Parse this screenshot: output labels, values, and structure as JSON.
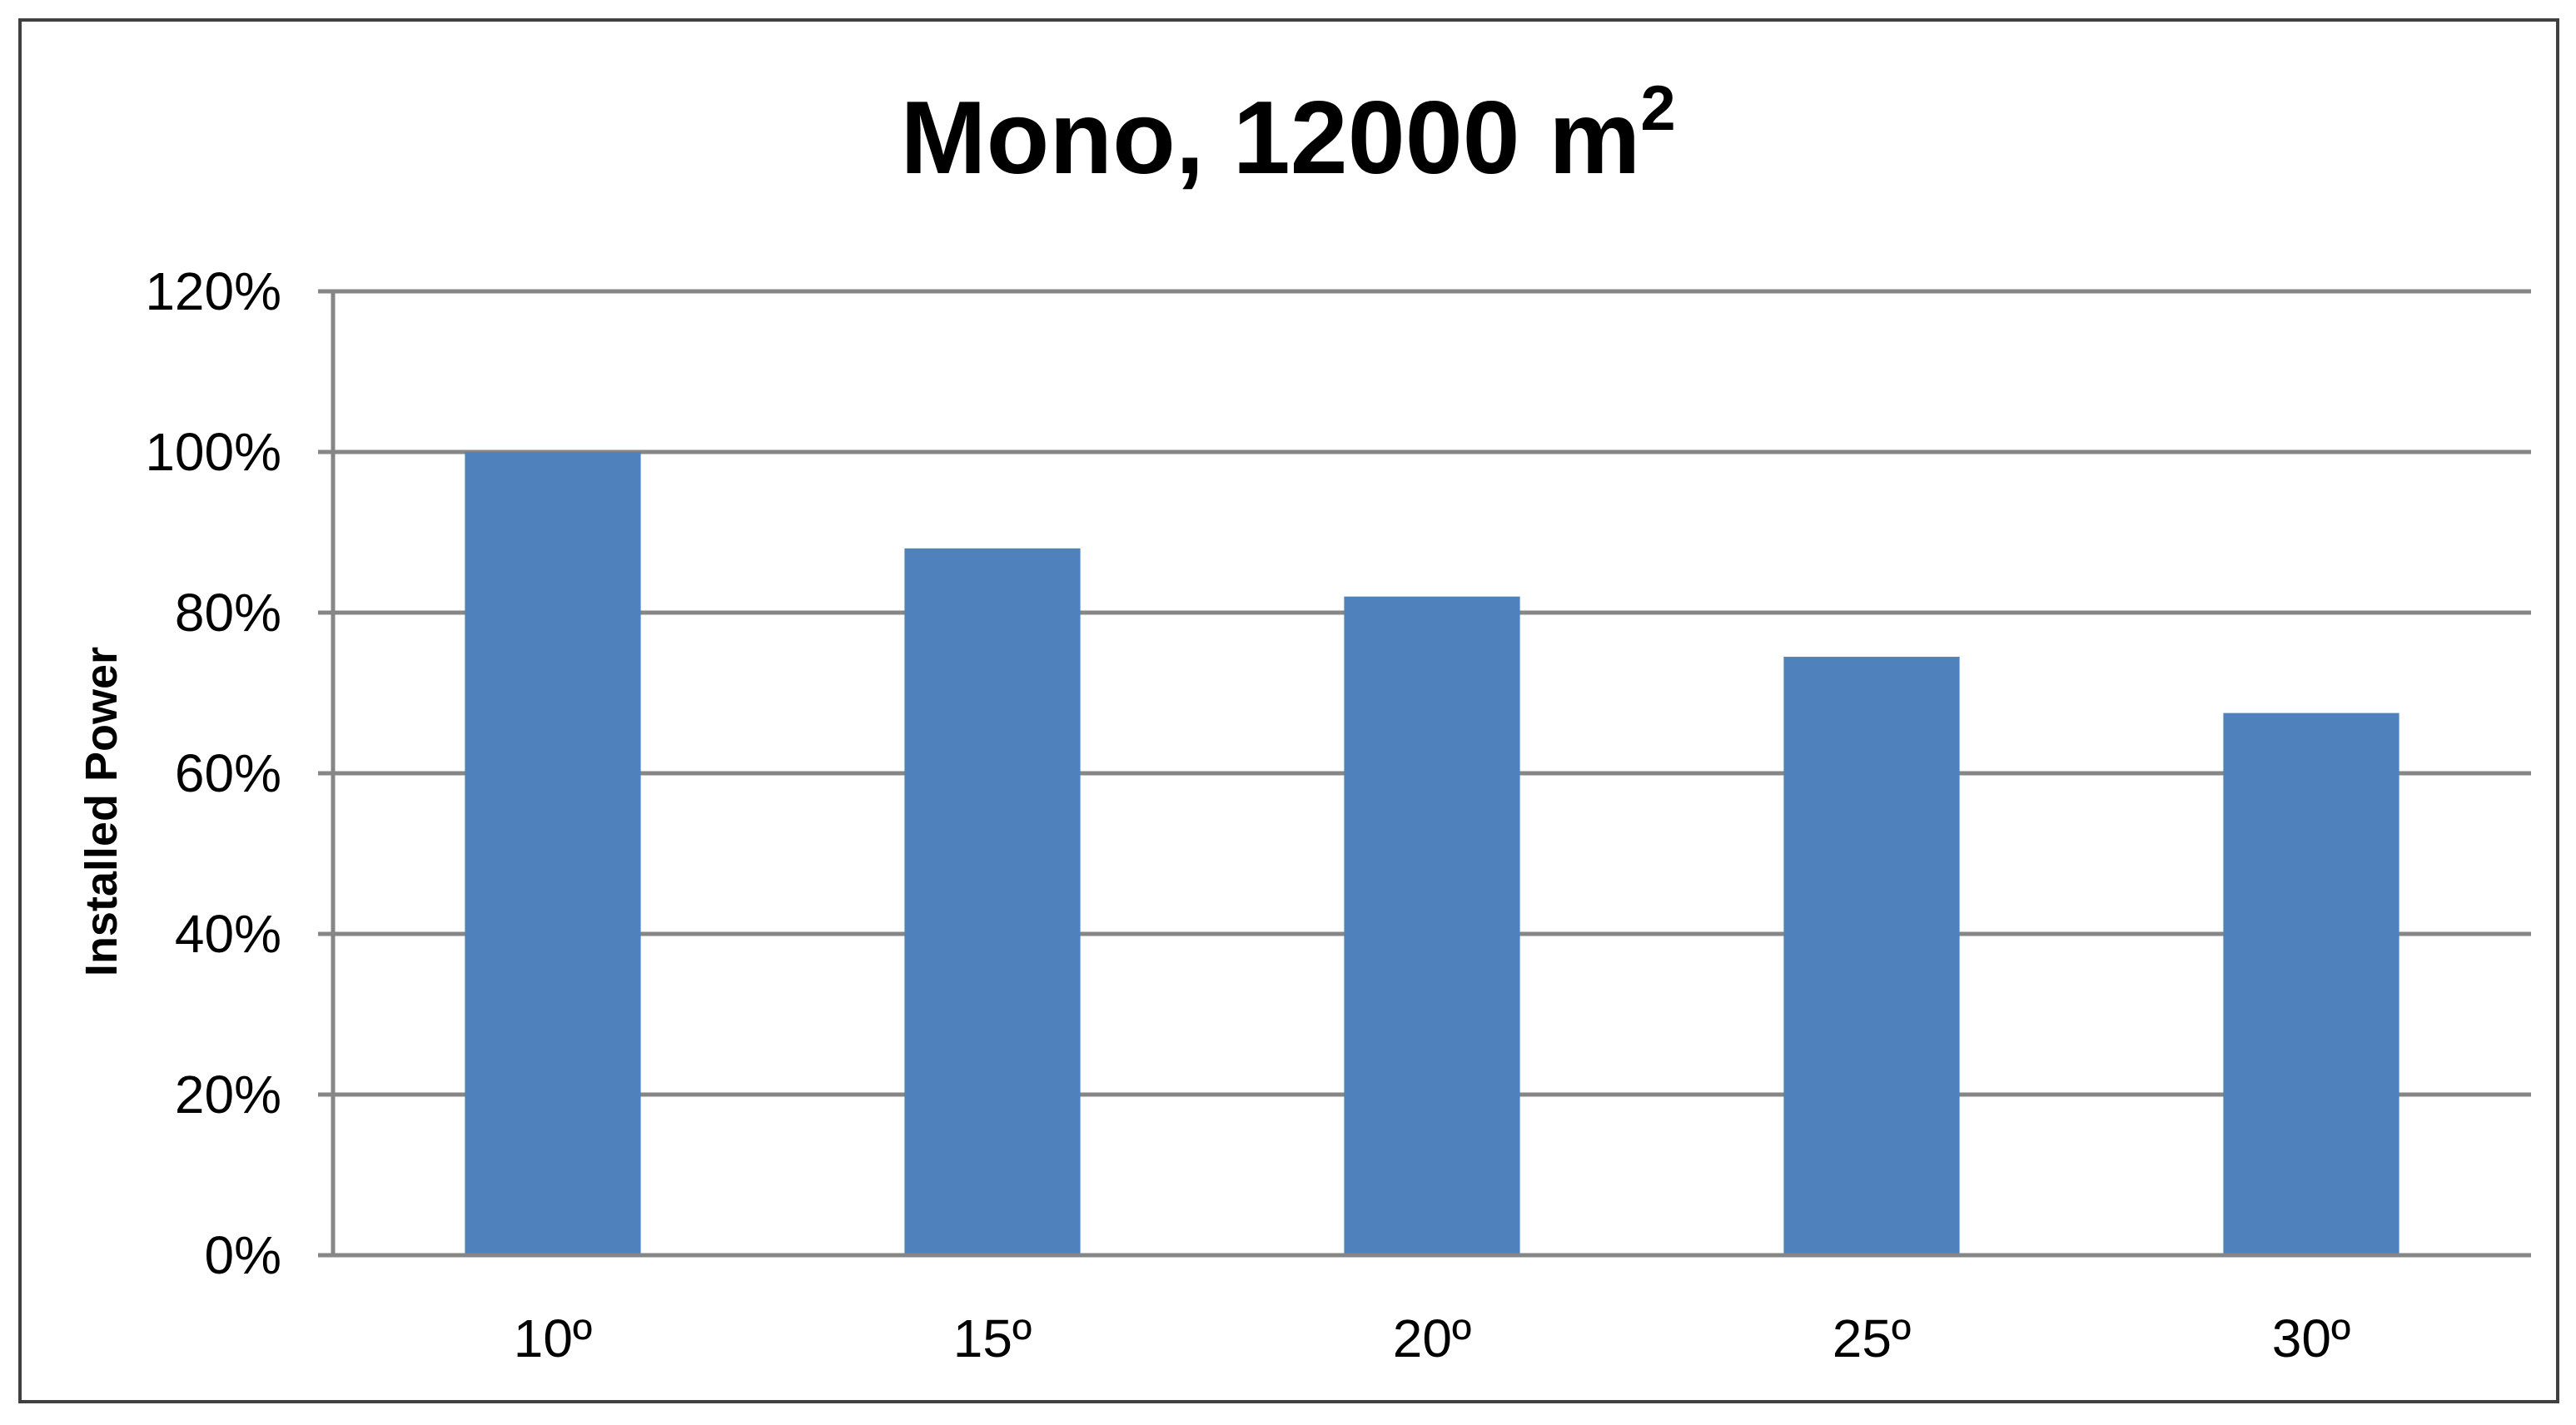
{
  "chart_data": {
    "type": "bar",
    "title": "Mono, 12000 m",
    "title_superscript": "2",
    "xlabel": "",
    "ylabel": "Installed Power",
    "categories": [
      "10º",
      "15º",
      "20º",
      "25º",
      "30º"
    ],
    "values": [
      100,
      88,
      82,
      74.5,
      67.5
    ],
    "value_unit": "%",
    "ylim": [
      0,
      120
    ],
    "yticks": [
      0,
      20,
      40,
      60,
      80,
      100,
      120
    ],
    "ytick_labels": [
      "0%",
      "20%",
      "40%",
      "60%",
      "80%",
      "100%",
      "120%"
    ],
    "grid": true,
    "legend": "none",
    "bar_color": "#4f81bd",
    "gridline_color": "#868686",
    "border_color": "#404040"
  }
}
